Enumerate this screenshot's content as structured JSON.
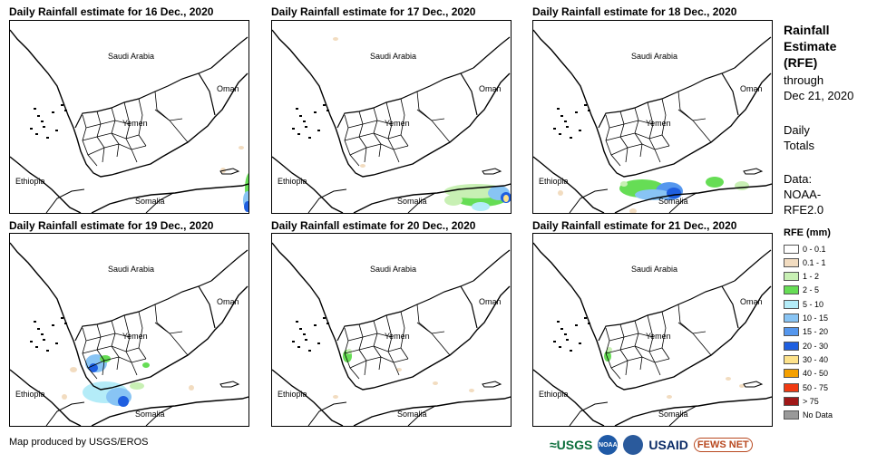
{
  "panels": [
    {
      "title": "Daily Rainfall estimate for 16 Dec., 2020"
    },
    {
      "title": "Daily Rainfall estimate for 17 Dec., 2020"
    },
    {
      "title": "Daily Rainfall estimate for 18 Dec., 2020"
    },
    {
      "title": "Daily Rainfall estimate for 19 Dec., 2020"
    },
    {
      "title": "Daily Rainfall estimate for 20 Dec., 2020"
    },
    {
      "title": "Daily Rainfall estimate for 21 Dec., 2020"
    }
  ],
  "map_labels": {
    "saudi": "Saudi Arabia",
    "oman": "Oman",
    "yemen": "Yemen",
    "ethiopia": "Ethiopia",
    "somalia": "Somalia"
  },
  "legend": {
    "title_lines": [
      "Rainfall",
      "Estimate",
      "(RFE)"
    ],
    "through": "through",
    "date": "Dec 21, 2020",
    "daily": "Daily",
    "totals": "Totals",
    "data_label": "Data:",
    "source_1": "NOAA-",
    "source_2": "RFE2.0",
    "rfe_title": "RFE (mm)",
    "classes": [
      {
        "label": "0 - 0.1",
        "color": "#ffffff"
      },
      {
        "label": "0.1 - 1",
        "color": "#f2dcc0"
      },
      {
        "label": "1 - 2",
        "color": "#c8f0b4"
      },
      {
        "label": "2 - 5",
        "color": "#66dd55"
      },
      {
        "label": "5 - 10",
        "color": "#b4ecf8"
      },
      {
        "label": "10 - 15",
        "color": "#88c4f4"
      },
      {
        "label": "15 - 20",
        "color": "#5597ee"
      },
      {
        "label": "20 - 30",
        "color": "#1f5fe0"
      },
      {
        "label": "30 - 40",
        "color": "#fde28a"
      },
      {
        "label": "40 - 50",
        "color": "#f5a000"
      },
      {
        "label": "50 - 75",
        "color": "#f03a12"
      },
      {
        "label": "> 75",
        "color": "#a01818"
      },
      {
        "label": "No Data",
        "color": "#999999"
      }
    ]
  },
  "credit": "Map produced by USGS/EROS",
  "logos": {
    "usgs": "≈USGS",
    "noaa": "NOAA",
    "usaid": "USAID",
    "fews": "FEWS NET"
  }
}
